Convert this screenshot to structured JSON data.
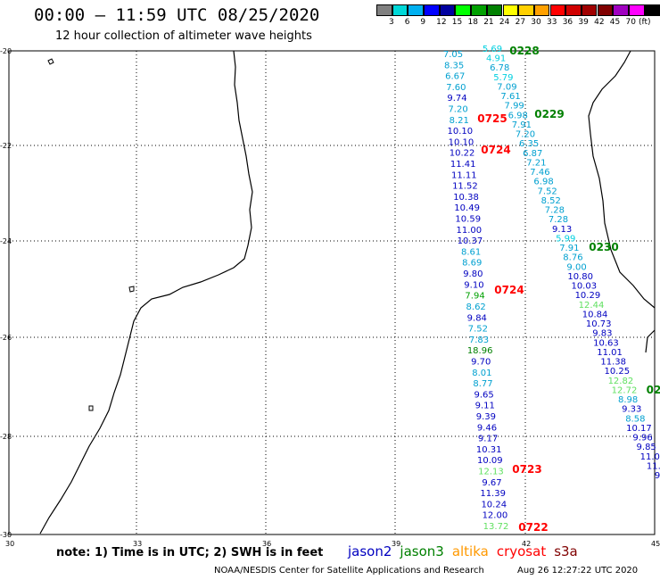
{
  "header": {
    "title": "00:00 – 11:59 UTC 08/25/2020",
    "subtitle": "12 hour collection of altimeter wave heights"
  },
  "colorbar": {
    "colors": [
      "#808080",
      "#00d8d8",
      "#00b0f0",
      "#0000ff",
      "#0000a0",
      "#00ff00",
      "#00a000",
      "#008000",
      "#ffff00",
      "#ffd000",
      "#ffa000",
      "#ff0000",
      "#d00000",
      "#a00000",
      "#800000",
      "#a000c0",
      "#ff00ff",
      "#000000"
    ],
    "labels": [
      "3",
      "6",
      "9",
      "12",
      "15",
      "18",
      "21",
      "24",
      "27",
      "30",
      "33",
      "36",
      "39",
      "42",
      "45",
      "70"
    ],
    "unit": "(ft)"
  },
  "axes": {
    "x_ticks": [
      "30",
      "33",
      "36",
      "39",
      "42",
      "45"
    ],
    "y_ticks": [
      "-20",
      "-22",
      "-24",
      "-26",
      "-28",
      "-30"
    ]
  },
  "note": "note: 1) Time is in UTC; 2) SWH is in feet",
  "legend": [
    {
      "name": "jason2",
      "color": "#0000c0"
    },
    {
      "name": "jason3",
      "color": "#008000"
    },
    {
      "name": "altika",
      "color": "#ff9900"
    },
    {
      "name": "cryosat",
      "color": "#ff0000"
    },
    {
      "name": "s3a",
      "color": "#800000"
    }
  ],
  "footer": {
    "left": "NOAA/NESDIS Center for Satellite Applications and Research",
    "right": "Aug 26 12:27:22 UTC 2020"
  },
  "tracks": [
    {
      "color_key": "a",
      "values": [
        {
          "v": "7.05",
          "c": "#00a0d0"
        },
        {
          "v": "8.35",
          "c": "#00a0d0"
        },
        {
          "v": "6.67",
          "c": "#00a0d0"
        },
        {
          "v": "7.60",
          "c": "#00a0d0"
        },
        {
          "v": "9.74",
          "c": "#0000c0"
        },
        {
          "v": "7.20",
          "c": "#00a0d0"
        },
        {
          "v": "8.21",
          "c": "#00a0d0"
        },
        {
          "v": "10.10",
          "c": "#0000c0"
        },
        {
          "v": "10.10",
          "c": "#0000c0"
        },
        {
          "v": "10.22",
          "c": "#0000c0"
        },
        {
          "v": "11.41",
          "c": "#0000c0"
        },
        {
          "v": "11.11",
          "c": "#0000c0"
        },
        {
          "v": "11.52",
          "c": "#0000c0"
        },
        {
          "v": "10.38",
          "c": "#0000c0"
        },
        {
          "v": "10.49",
          "c": "#0000c0"
        },
        {
          "v": "10.59",
          "c": "#0000c0"
        },
        {
          "v": "11.00",
          "c": "#0000c0"
        },
        {
          "v": "10.37",
          "c": "#0000c0"
        },
        {
          "v": "8.61",
          "c": "#00a0d0"
        },
        {
          "v": "8.69",
          "c": "#00a0d0"
        },
        {
          "v": "9.80",
          "c": "#0000c0"
        },
        {
          "v": "9.10",
          "c": "#0000c0"
        },
        {
          "v": "7.94",
          "c": "#00a000"
        },
        {
          "v": "8.62",
          "c": "#00a0d0"
        },
        {
          "v": "9.84",
          "c": "#0000c0"
        },
        {
          "v": "7.52",
          "c": "#00a0d0"
        },
        {
          "v": "7.83",
          "c": "#00a0d0"
        },
        {
          "v": "18.96",
          "c": "#008000"
        },
        {
          "v": "9.70",
          "c": "#0000c0"
        },
        {
          "v": "8.01",
          "c": "#00a0d0"
        },
        {
          "v": "8.77",
          "c": "#00a0d0"
        },
        {
          "v": "9.65",
          "c": "#0000c0"
        },
        {
          "v": "9.11",
          "c": "#0000c0"
        },
        {
          "v": "9.39",
          "c": "#0000c0"
        },
        {
          "v": "9.46",
          "c": "#0000c0"
        },
        {
          "v": "9.17",
          "c": "#0000c0"
        },
        {
          "v": "10.31",
          "c": "#0000c0"
        },
        {
          "v": "10.09",
          "c": "#0000c0"
        },
        {
          "v": "12.13",
          "c": "#60e060"
        },
        {
          "v": "9.67",
          "c": "#0000c0"
        },
        {
          "v": "11.39",
          "c": "#0000c0"
        },
        {
          "v": "10.24",
          "c": "#0000c0"
        },
        {
          "v": "12.00",
          "c": "#0000c0"
        },
        {
          "v": "13.72",
          "c": "#60e060"
        }
      ]
    },
    {
      "color_key": "b",
      "values": [
        {
          "v": "5.69",
          "c": "#00d0e0"
        },
        {
          "v": "4.91",
          "c": "#00d0e0"
        },
        {
          "v": "6.78",
          "c": "#00a0d0"
        },
        {
          "v": "5.79",
          "c": "#00d0e0"
        },
        {
          "v": "7.09",
          "c": "#00a0d0"
        },
        {
          "v": "7.61",
          "c": "#00a0d0"
        },
        {
          "v": "7.99",
          "c": "#00a0d0"
        },
        {
          "v": "6.98",
          "c": "#00a0d0"
        },
        {
          "v": "7.91",
          "c": "#00a0d0"
        },
        {
          "v": "7.20",
          "c": "#00a0d0"
        },
        {
          "v": "6.35",
          "c": "#00a0d0"
        },
        {
          "v": "6.87",
          "c": "#00a0d0"
        },
        {
          "v": "7.21",
          "c": "#00a0d0"
        },
        {
          "v": "7.46",
          "c": "#00a0d0"
        },
        {
          "v": "6.98",
          "c": "#00a0d0"
        },
        {
          "v": "7.52",
          "c": "#00a0d0"
        },
        {
          "v": "8.52",
          "c": "#00a0d0"
        },
        {
          "v": "7.28",
          "c": "#00a0d0"
        },
        {
          "v": "7.28",
          "c": "#00a0d0"
        },
        {
          "v": "9.13",
          "c": "#0000c0"
        },
        {
          "v": "5.99",
          "c": "#00d0e0"
        },
        {
          "v": "7.91",
          "c": "#00a0d0"
        },
        {
          "v": "8.76",
          "c": "#00a0d0"
        },
        {
          "v": "9.00",
          "c": "#00a0d0"
        },
        {
          "v": "10.80",
          "c": "#0000c0"
        },
        {
          "v": "10.03",
          "c": "#0000c0"
        },
        {
          "v": "10.29",
          "c": "#0000c0"
        },
        {
          "v": "12.44",
          "c": "#60e060"
        },
        {
          "v": "10.84",
          "c": "#0000c0"
        },
        {
          "v": "10.73",
          "c": "#0000c0"
        },
        {
          "v": "9.83",
          "c": "#0000c0"
        },
        {
          "v": "10.63",
          "c": "#0000c0"
        },
        {
          "v": "11.01",
          "c": "#0000c0"
        },
        {
          "v": "11.38",
          "c": "#0000c0"
        },
        {
          "v": "10.25",
          "c": "#0000c0"
        },
        {
          "v": "12.82",
          "c": "#60e060"
        },
        {
          "v": "12.72",
          "c": "#60e060"
        },
        {
          "v": "8.98",
          "c": "#00a0d0"
        },
        {
          "v": "9.33",
          "c": "#0000c0"
        },
        {
          "v": "8.58",
          "c": "#00a0d0"
        },
        {
          "v": "10.17",
          "c": "#0000c0"
        },
        {
          "v": "9.96",
          "c": "#0000c0"
        },
        {
          "v": "9.85",
          "c": "#0000c0"
        },
        {
          "v": "11.0",
          "c": "#0000c0"
        },
        {
          "v": "11.",
          "c": "#0000c0"
        },
        {
          "v": "9",
          "c": "#0000c0"
        }
      ]
    }
  ],
  "time_labels": [
    {
      "t": "0228",
      "c": "#008000"
    },
    {
      "t": "0229",
      "c": "#008000"
    },
    {
      "t": "0725",
      "c": "#ff0000"
    },
    {
      "t": "0724",
      "c": "#ff0000"
    },
    {
      "t": "0230",
      "c": "#008000"
    },
    {
      "t": "0724",
      "c": "#ff0000"
    },
    {
      "t": "02",
      "c": "#008000"
    },
    {
      "t": "0723",
      "c": "#ff0000"
    },
    {
      "t": "0722",
      "c": "#ff0000"
    }
  ]
}
